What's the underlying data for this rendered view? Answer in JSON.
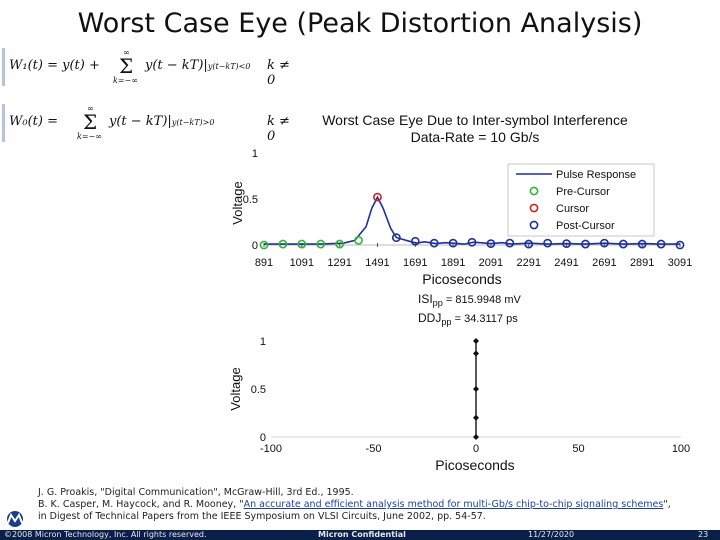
{
  "slide": {
    "title": "Worst Case Eye (Peak Distortion Analysis)"
  },
  "formulas": [
    {
      "lhs": "W₁(t) = y(t) +",
      "sum_top": "∞",
      "sum_bottom": "k=−∞",
      "rhs": "y(t − kT)|",
      "subscript": "y(t−kT)<0",
      "condition": "k ≠ 0"
    },
    {
      "lhs": "W₀(t) =",
      "sum_top": "∞",
      "sum_bottom": "k=−∞",
      "rhs": "y(t − kT)|",
      "subscript": "y(t−kT)>0",
      "condition": "k ≠ 0"
    }
  ],
  "chart_data": [
    {
      "type": "line",
      "title": "Worst Case Eye Due to Inter-symbol Interference",
      "subtitle": "Data-Rate = 10 Gb/s",
      "xlabel": "Picoseconds",
      "ylabel": "Voltage",
      "xlim": [
        891,
        3091
      ],
      "ylim": [
        0,
        1
      ],
      "x_ticks": [
        "891",
        "1091",
        "1291",
        "1491",
        "1691",
        "1891",
        "2091",
        "2291",
        "2491",
        "2691",
        "2891",
        "3091"
      ],
      "y_ticks": [
        "0",
        "0.5",
        "1"
      ],
      "legend_position": "top-right",
      "legend": [
        "Pulse Response",
        "Pre-Cursor",
        "Cursor",
        "Post-Cursor"
      ],
      "series": [
        {
          "name": "Pulse Response",
          "color": "#1f2f9c",
          "x": [
            891,
            1191,
            1311,
            1371,
            1431,
            1461,
            1491,
            1521,
            1561,
            1591,
            1661,
            1700,
            1740,
            1800,
            1850,
            1891,
            1950,
            2000,
            2091,
            2150,
            2200,
            2291,
            2400,
            2491,
            2591,
            2691,
            2791,
            2891,
            2991,
            3091
          ],
          "y": [
            0.01,
            0.01,
            0.02,
            0.05,
            0.2,
            0.4,
            0.52,
            0.4,
            0.18,
            0.08,
            0.04,
            0.02,
            0.035,
            0.015,
            0.025,
            0.02,
            0.01,
            0.03,
            0.015,
            0.025,
            0.01,
            0.02,
            0.01,
            0.015,
            0.01,
            0.02,
            0.01,
            0.015,
            0.01,
            0.01
          ]
        },
        {
          "name": "Pre-Cursor",
          "color": "#2eb82e",
          "x": [
            891,
            991,
            1091,
            1191,
            1291,
            1391
          ],
          "y": [
            0.0,
            0.01,
            0.01,
            0.01,
            0.01,
            0.05
          ]
        },
        {
          "name": "Cursor",
          "color": "#d42020",
          "x": [
            1491
          ],
          "y": [
            0.52
          ]
        },
        {
          "name": "Post-Cursor",
          "color": "#1f2f9c",
          "x": [
            1591,
            1691,
            1791,
            1891,
            1991,
            2091,
            2191,
            2291,
            2391,
            2491,
            2591,
            2691,
            2791,
            2891,
            2991,
            3091
          ],
          "y": [
            0.08,
            0.04,
            0.02,
            0.02,
            0.03,
            0.015,
            0.02,
            0.01,
            0.02,
            0.015,
            0.01,
            0.02,
            0.01,
            0.01,
            0.01,
            0.0
          ]
        }
      ]
    },
    {
      "type": "scatter",
      "xlabel": "Picoseconds",
      "ylabel": "Voltage",
      "xlim": [
        -100,
        100
      ],
      "ylim": [
        0,
        1
      ],
      "x_ticks": [
        "-100",
        "-50",
        "0",
        "50",
        "100"
      ],
      "y_ticks": [
        "0",
        "0.5",
        "1"
      ],
      "series": [
        {
          "name": "Eye",
          "color": "#111111",
          "x": [
            0,
            0,
            0,
            0,
            0
          ],
          "y": [
            1.0,
            0.87,
            0.5,
            0.2,
            0.0
          ]
        }
      ]
    }
  ],
  "isi": {
    "isi_label": "ISI",
    "isi_sub": "pp",
    "isi_value": "= 815.9948 mV",
    "ddj_label": "DDJ",
    "ddj_sub": "pp",
    "ddj_value": "= 34.3117 ps"
  },
  "references": {
    "line1": "J. G. Proakis, \"Digital Communication\", McGraw-Hill, 3rd Ed., 1995.",
    "line2_prefix": "B. K. Casper, M. Haycock, and R. Mooney, \"",
    "line2_link": "An accurate and efficient analysis method for multi-Gb/s chip-to-chip signaling schemes",
    "line2_suffix": "\",",
    "line3": "in Digest of Technical Papers from the IEEE Symposium on VLSI Circuits, June 2002, pp. 54-57."
  },
  "footer": {
    "copyright": "©2008 Micron Technology, Inc. All rights reserved.",
    "confidential": "Micron Confidential",
    "date": "11/27/2020",
    "page": "23"
  },
  "colors": {
    "pulse": "#1f2f9c",
    "pre": "#2eb82e",
    "cursor": "#d42020",
    "post": "#1f2f9c",
    "footer_bg": "#0a1f4a"
  }
}
